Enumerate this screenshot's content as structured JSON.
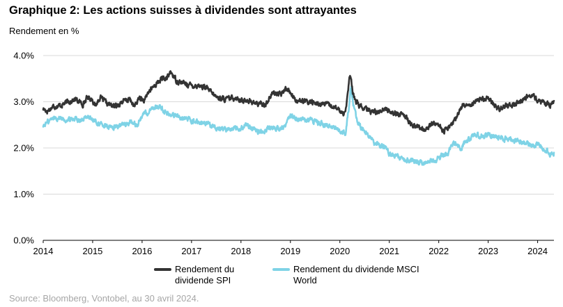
{
  "title": "Graphique 2: Les actions suisses à dividendes sont attrayantes",
  "y_unit": "Rendement en %",
  "source": "Source: Bloomberg, Vontobel, au 30 avril 2024.",
  "colors": {
    "spi": "#333333",
    "msci": "#7fd3e6",
    "gridline": "#d9d9d9",
    "axis": "#000000"
  },
  "chart_data": {
    "type": "line",
    "title": "Graphique 2: Les actions suisses à dividendes sont attrayantes",
    "ylabel": "Rendement en %",
    "xlabel": "",
    "xlim": [
      2014.0,
      2024.33
    ],
    "ylim": [
      0.0,
      4.0
    ],
    "y_ticks": [
      0,
      1,
      2,
      3,
      4
    ],
    "y_tick_labels": [
      "0.0%",
      "1.0%",
      "2.0%",
      "3.0%",
      "4.0%"
    ],
    "x_ticks": [
      2014,
      2015,
      2016,
      2017,
      2018,
      2019,
      2020,
      2021,
      2022,
      2023,
      2024
    ],
    "x_tick_labels": [
      "2014",
      "2015",
      "2016",
      "2017",
      "2018",
      "2019",
      "2020",
      "2021",
      "2022",
      "2023",
      "2024"
    ],
    "grid": true,
    "legend_position": "bottom",
    "series": [
      {
        "name": "Rendement du dividende SPI",
        "legend_lines": [
          "Rendement du",
          "dividende SPI"
        ],
        "x": [
          2014.0,
          2014.08,
          2014.2,
          2014.35,
          2014.5,
          2014.65,
          2014.8,
          2014.9,
          2015.0,
          2015.05,
          2015.15,
          2015.3,
          2015.45,
          2015.6,
          2015.75,
          2015.85,
          2015.95,
          2016.05,
          2016.12,
          2016.25,
          2016.4,
          2016.5,
          2016.58,
          2016.7,
          2016.85,
          2017.0,
          2017.15,
          2017.3,
          2017.5,
          2017.7,
          2017.9,
          2018.05,
          2018.12,
          2018.2,
          2018.35,
          2018.5,
          2018.65,
          2018.8,
          2018.92,
          2019.0,
          2019.1,
          2019.25,
          2019.4,
          2019.55,
          2019.7,
          2019.85,
          2020.0,
          2020.1,
          2020.15,
          2020.2,
          2020.23,
          2020.26,
          2020.3,
          2020.4,
          2020.5,
          2020.6,
          2020.75,
          2020.9,
          2021.0,
          2021.15,
          2021.3,
          2021.45,
          2021.6,
          2021.75,
          2021.9,
          2022.0,
          2022.1,
          2022.2,
          2022.3,
          2022.42,
          2022.5,
          2022.6,
          2022.75,
          2022.9,
          2023.0,
          2023.1,
          2023.2,
          2023.35,
          2023.5,
          2023.65,
          2023.78,
          2023.9,
          2024.0,
          2024.1,
          2024.2,
          2024.28,
          2024.33
        ],
        "values": [
          2.85,
          2.8,
          2.9,
          2.92,
          3.0,
          3.05,
          2.95,
          3.1,
          3.05,
          2.9,
          3.1,
          2.95,
          2.9,
          3.0,
          3.05,
          2.9,
          3.1,
          3.0,
          3.2,
          3.35,
          3.5,
          3.5,
          3.65,
          3.45,
          3.4,
          3.35,
          3.35,
          3.3,
          3.1,
          3.05,
          3.1,
          3.0,
          3.05,
          3.0,
          2.95,
          2.95,
          3.2,
          3.15,
          3.3,
          3.2,
          3.05,
          3.0,
          3.0,
          2.95,
          2.95,
          2.9,
          2.8,
          2.75,
          3.1,
          3.55,
          3.45,
          3.2,
          3.05,
          2.9,
          2.85,
          2.8,
          2.78,
          2.85,
          2.8,
          2.75,
          2.7,
          2.5,
          2.45,
          2.4,
          2.55,
          2.5,
          2.35,
          2.45,
          2.55,
          2.8,
          2.95,
          2.9,
          3.05,
          3.05,
          3.1,
          2.95,
          2.85,
          2.9,
          2.95,
          3.0,
          3.1,
          3.15,
          3.0,
          3.0,
          2.95,
          2.92,
          3.02
        ]
      },
      {
        "name": "Rendement du dividende MSCI World",
        "legend_lines": [
          "Rendement du dividende MSCI",
          "World"
        ],
        "x": [
          2014.0,
          2014.08,
          2014.2,
          2014.35,
          2014.5,
          2014.65,
          2014.8,
          2014.9,
          2015.0,
          2015.08,
          2015.2,
          2015.3,
          2015.45,
          2015.6,
          2015.75,
          2015.9,
          2016.0,
          2016.07,
          2016.12,
          2016.2,
          2016.35,
          2016.5,
          2016.7,
          2016.85,
          2017.0,
          2017.15,
          2017.3,
          2017.5,
          2017.7,
          2017.9,
          2018.05,
          2018.1,
          2018.2,
          2018.35,
          2018.5,
          2018.65,
          2018.8,
          2018.92,
          2019.0,
          2019.1,
          2019.25,
          2019.4,
          2019.55,
          2019.7,
          2019.85,
          2020.0,
          2020.12,
          2020.15,
          2020.2,
          2020.23,
          2020.27,
          2020.35,
          2020.45,
          2020.55,
          2020.7,
          2020.85,
          2021.0,
          2021.15,
          2021.3,
          2021.45,
          2021.6,
          2021.75,
          2021.9,
          2022.0,
          2022.1,
          2022.2,
          2022.3,
          2022.45,
          2022.55,
          2022.65,
          2022.75,
          2022.85,
          2023.0,
          2023.15,
          2023.3,
          2023.45,
          2023.6,
          2023.75,
          2023.9,
          2024.0,
          2024.1,
          2024.2,
          2024.28,
          2024.33
        ],
        "values": [
          2.48,
          2.55,
          2.65,
          2.65,
          2.6,
          2.65,
          2.6,
          2.7,
          2.6,
          2.55,
          2.5,
          2.45,
          2.45,
          2.5,
          2.55,
          2.5,
          2.7,
          2.8,
          2.7,
          2.85,
          2.9,
          2.75,
          2.7,
          2.65,
          2.6,
          2.55,
          2.5,
          2.45,
          2.4,
          2.45,
          2.45,
          2.5,
          2.45,
          2.35,
          2.4,
          2.45,
          2.4,
          2.5,
          2.7,
          2.65,
          2.6,
          2.6,
          2.55,
          2.5,
          2.45,
          2.4,
          2.3,
          2.6,
          3.05,
          3.35,
          2.95,
          2.6,
          2.4,
          2.3,
          2.1,
          2.05,
          1.9,
          1.8,
          1.75,
          1.72,
          1.68,
          1.7,
          1.72,
          1.8,
          1.85,
          1.9,
          2.1,
          2.0,
          2.15,
          2.2,
          2.3,
          2.25,
          2.3,
          2.25,
          2.2,
          2.18,
          2.15,
          2.1,
          2.05,
          2.1,
          2.0,
          1.95,
          1.85,
          1.9
        ]
      }
    ]
  }
}
